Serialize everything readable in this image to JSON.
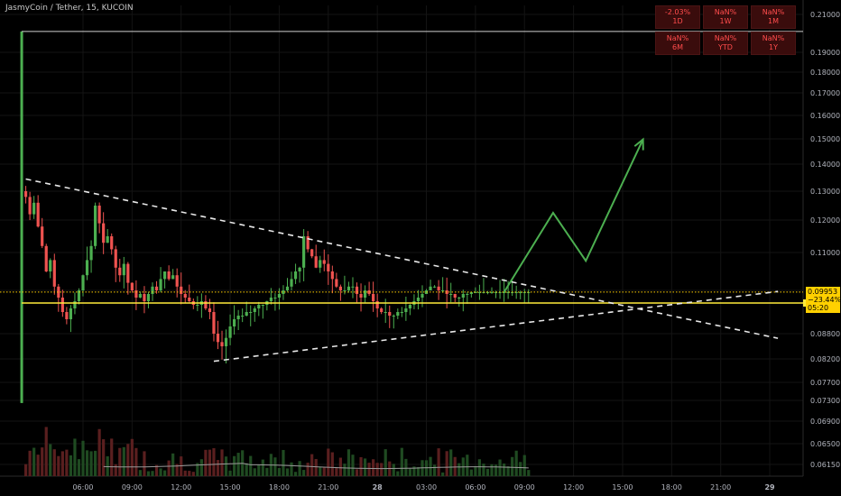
{
  "header": {
    "title": "JasmyCoin / Tether, 15, KUCOIN"
  },
  "performance": [
    {
      "value": "-2.03%",
      "period": "1D"
    },
    {
      "value": "NaN%",
      "period": "1W"
    },
    {
      "value": "NaN%",
      "period": "1M"
    },
    {
      "value": "NaN%",
      "period": "6M"
    },
    {
      "value": "NaN%",
      "period": "YTD"
    },
    {
      "value": "NaN%",
      "period": "1Y"
    }
  ],
  "price_tag": {
    "price": "0.09953",
    "change": "−23.44%",
    "countdown": "05:20"
  },
  "colors": {
    "up": "#4caf50",
    "down": "#ef5350",
    "level": "#ffeb3b",
    "price": "#ffd000",
    "trend": "#e8e8e8",
    "projection": "#4caf50"
  },
  "chart_data": {
    "type": "candlestick",
    "ylim": [
      0.0585,
      0.2135
    ],
    "y_ticks": [
      "0.21000",
      "0.19000",
      "0.18000",
      "0.17000",
      "0.16000",
      "0.15000",
      "0.14000",
      "0.13000",
      "0.12000",
      "0.11000",
      "0.10000",
      "0.08800",
      "0.08200",
      "0.07700",
      "0.07300",
      "0.06900",
      "0.06500",
      "0.06150"
    ],
    "x_ticks": [
      "06:00",
      "09:00",
      "12:00",
      "15:00",
      "18:00",
      "21:00",
      "28",
      "03:00",
      "06:00",
      "09:00",
      "12:00",
      "15:00",
      "18:00",
      "21:00",
      "29"
    ],
    "x_tick_slots": [
      0,
      12,
      24,
      36,
      48,
      60,
      72,
      84,
      96,
      108,
      120,
      132,
      144,
      156,
      168
    ],
    "first_slot": -15,
    "last_slot": 109,
    "candle_path": [
      0.13,
      0.128,
      0.122,
      0.126,
      0.118,
      0.112,
      0.105,
      0.108,
      0.101,
      0.098,
      0.094,
      0.092,
      0.095,
      0.097,
      0.1,
      0.104,
      0.108,
      0.112,
      0.125,
      0.119,
      0.113,
      0.115,
      0.111,
      0.106,
      0.104,
      0.107,
      0.102,
      0.1,
      0.098,
      0.099,
      0.097,
      0.099,
      0.101,
      0.1,
      0.103,
      0.105,
      0.103,
      0.104,
      0.101,
      0.099,
      0.098,
      0.097,
      0.096,
      0.096,
      0.097,
      0.095,
      0.094,
      0.088,
      0.086,
      0.085,
      0.087,
      0.09,
      0.092,
      0.093,
      0.093,
      0.094,
      0.094,
      0.095,
      0.096,
      0.096,
      0.097,
      0.098,
      0.098,
      0.099,
      0.1,
      0.101,
      0.103,
      0.105,
      0.106,
      0.115,
      0.111,
      0.109,
      0.106,
      0.108,
      0.107,
      0.105,
      0.103,
      0.101,
      0.1,
      0.1,
      0.101,
      0.101,
      0.099,
      0.098,
      0.1,
      0.099,
      0.097,
      0.095,
      0.094,
      0.094,
      0.093,
      0.093,
      0.094,
      0.094,
      0.095,
      0.096,
      0.097,
      0.098,
      0.099,
      0.1,
      0.101,
      0.101,
      0.1,
      0.1,
      0.099,
      0.099,
      0.098,
      0.098,
      0.099,
      0.099,
      0.0995,
      0.0995,
      0.0995,
      0.0995,
      0.0995,
      0.0995,
      0.0995,
      0.0995,
      0.0995,
      0.0995,
      0.0995,
      0.0995,
      0.0995,
      0.0995,
      0.0995
    ],
    "spike_open": 0.0725,
    "spike_high": 0.201,
    "current_price": 0.09953,
    "level_price": 0.0965,
    "upper_trendline": {
      "from": [
        -14,
        0.1345
      ],
      "to": [
        170,
        0.0869
      ]
    },
    "lower_trendline": {
      "from": [
        32,
        0.0815
      ],
      "to": [
        170,
        0.0997
      ]
    },
    "projection_path": [
      [
        103,
        0.0995
      ],
      [
        115,
        0.1225
      ],
      [
        123,
        0.1078
      ],
      [
        137,
        0.1498
      ]
    ],
    "volume_ma": true
  }
}
